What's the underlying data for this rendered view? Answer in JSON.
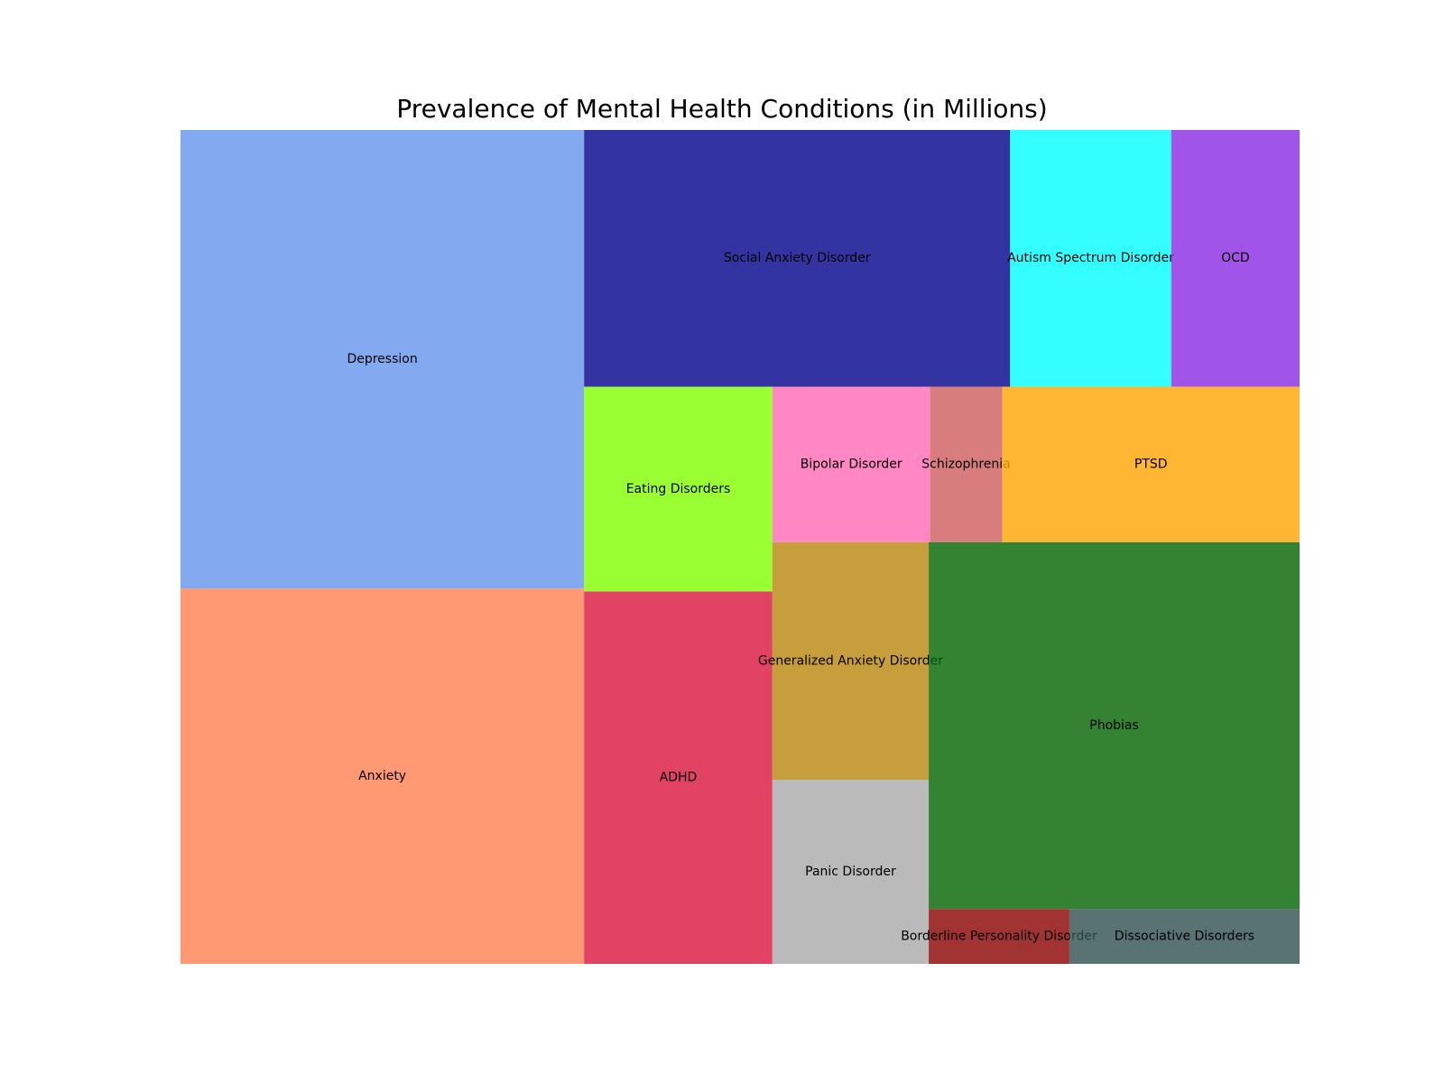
{
  "chart_data": {
    "type": "treemap",
    "title": "Prevalence of Mental Health Conditions (in Millions)",
    "unit": "millions",
    "items": [
      {
        "label": "Depression",
        "value": 264,
        "color": "#6495ED"
      },
      {
        "label": "Anxiety",
        "value": 216,
        "color": "#FF7F50"
      },
      {
        "label": "Social Anxiety Disorder",
        "value": 156,
        "color": "#00008B"
      },
      {
        "label": "Autism Spectrum Disorder",
        "value": 59,
        "color": "#00FFFF"
      },
      {
        "label": "OCD",
        "value": 47,
        "color": "#8A2BE2"
      },
      {
        "label": "Eating Disorders",
        "value": 55,
        "color": "#7FFF00"
      },
      {
        "label": "ADHD",
        "value": 100,
        "color": "#DC143C"
      },
      {
        "label": "Bipolar Disorder",
        "value": 35,
        "color": "#FF69B4"
      },
      {
        "label": "Schizophrenia",
        "value": 16,
        "color": "#CD5C5C"
      },
      {
        "label": "PTSD",
        "value": 66,
        "color": "#FFA500"
      },
      {
        "label": "Generalized Anxiety Disorder",
        "value": 53,
        "color": "#B8860B"
      },
      {
        "label": "Panic Disorder",
        "value": 41,
        "color": "#A9A9A9"
      },
      {
        "label": "Phobias",
        "value": 194,
        "color": "#006400"
      },
      {
        "label": "Borderline Personality Disorder",
        "value": 11,
        "color": "#8B0000"
      },
      {
        "label": "Dissociative Disorders",
        "value": 18,
        "color": "#2F4F4F"
      }
    ],
    "opacity": 0.8
  }
}
